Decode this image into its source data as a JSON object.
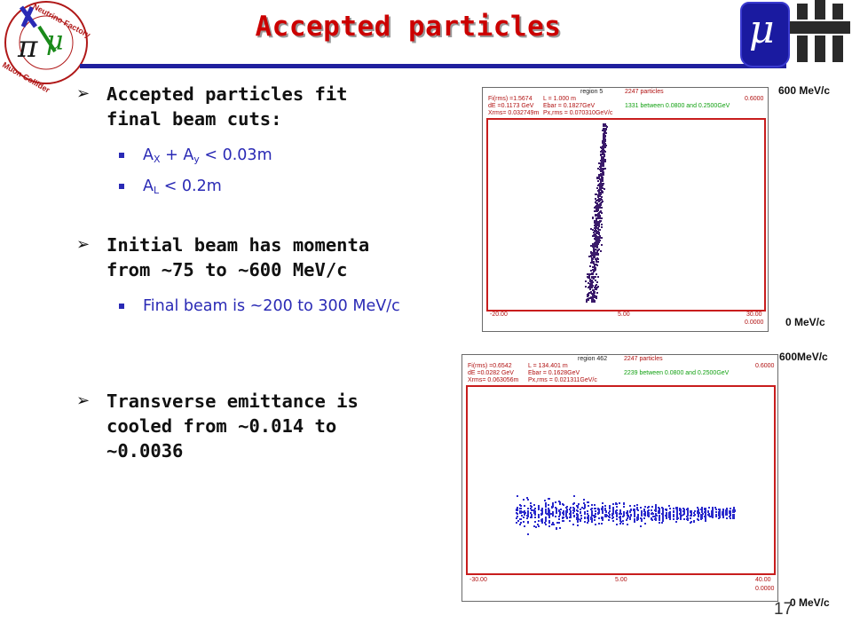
{
  "slide": {
    "title": "Accepted particles",
    "page_number": "17"
  },
  "logo_left": {
    "text_top": "Neutrino Factory",
    "text_bottom": "Muon Collider",
    "glyphs": "πνμ"
  },
  "logo_right": {
    "mu_glyph": "μ"
  },
  "bullets": [
    {
      "text": "Accepted particles fit final beam cuts:",
      "sub": [
        {
          "a": "A",
          "a_sub": "X",
          "b": " + A",
          "b_sub": "y",
          "rest": " <  0.03m"
        },
        {
          "a": "A",
          "a_sub": "L",
          "b": "",
          "b_sub": "",
          "rest": " < 0.2m"
        }
      ]
    },
    {
      "text": "Initial beam has momenta from ~75 to ~600 MeV/c",
      "sub": [
        {
          "text": "Final beam is ~200 to 300 MeV/c"
        }
      ]
    },
    {
      "text": "Transverse emittance is cooled from ~0.014 to ~0.0036",
      "sub": []
    }
  ],
  "plot_top": {
    "header_left": [
      "Fi(rms) =1.5674",
      "dE =0.1173 GeV",
      "Xrms= 0.032749m"
    ],
    "header_mid": [
      "L =  1.000 m",
      "Ebar =  0.1827GeV",
      "Px,rms = 0.070310GeV/c"
    ],
    "region": "region   5",
    "particles": "2247 particles",
    "between": "1331 between 0.0800 and 0.2500GeV",
    "y_top": "0.6000",
    "y_bottom": "0.0000",
    "x_left": "-20.00",
    "x_mid": "5.00",
    "x_right": "30.00",
    "label_top": "600 MeV/c",
    "label_bottom": "0 MeV/c",
    "dot_color": "#3a1a6a"
  },
  "plot_bottom": {
    "header_left": [
      "Fi(rms) =0.6542",
      "dE =0.0282 GeV",
      "Xrms= 0.063056m"
    ],
    "header_mid": [
      "L = 134.401 m",
      "Ebar =  0.1628GeV",
      "Px,rms = 0.021311GeV/c"
    ],
    "region": "region  462",
    "particles": "2247 particles",
    "between": "2239 between 0.0800 and 0.2500GeV",
    "y_top": "0.6000",
    "y_bottom": "0.0000",
    "x_left": "-30.00",
    "x_mid": "5.00",
    "x_right": "40.00",
    "label_top": "600MeV/c",
    "label_bottom": "0 MeV/c",
    "dot_color": "#2a2acc"
  }
}
